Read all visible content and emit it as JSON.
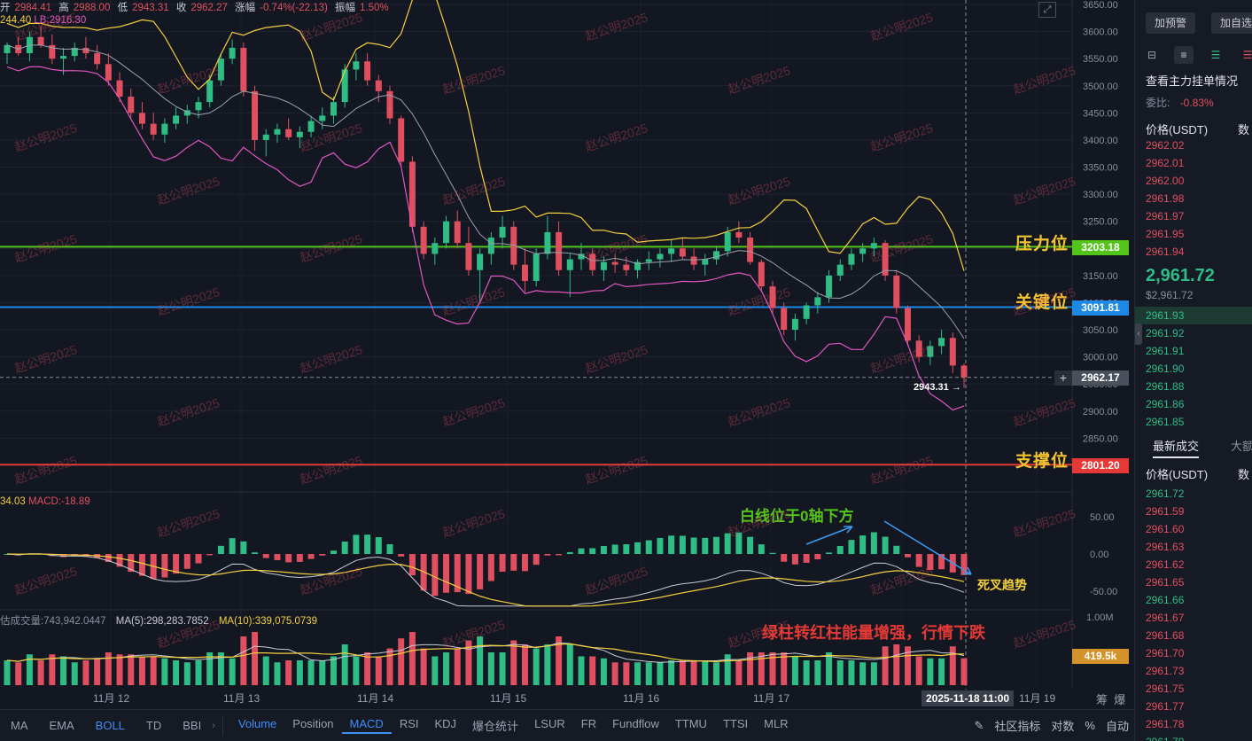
{
  "top_info": {
    "open_label": "开",
    "open": "2984.41",
    "high_label": "高",
    "high": "2988.00",
    "low_label": "低",
    "low": "2943.31",
    "close_label": "收",
    "close": "2962.27",
    "change_label": "涨幅",
    "change": "-0.74%(-22.13)",
    "amplitude_label": "振幅",
    "amplitude": "1.50%"
  },
  "boll_legend": {
    "ub": "244.40",
    "lb": "LB:2916.30"
  },
  "macd_legend": {
    "value": "34.03",
    "macd": "MACD:-18.89"
  },
  "vol_legend": {
    "vol": "估成交量:743,942.0447",
    "ma5": "MA(5):298,283.7852",
    "ma10": "MA(10):339,075.0739"
  },
  "price_axis": [
    "3650.00",
    "3600.00",
    "3550.00",
    "3500.00",
    "3450.00",
    "3400.00",
    "3350.00",
    "3300.00",
    "3250.00",
    "3200.00",
    "3150.00",
    "3100.00",
    "3050.00",
    "3000.00",
    "2950.00",
    "2900.00",
    "2850.00",
    "2800.00"
  ],
  "macd_axis": [
    "50.00",
    "0.00",
    "-50.00"
  ],
  "vol_axis": [
    "1.00M"
  ],
  "time_axis": [
    "11月 12",
    "11月 13",
    "11月 14",
    "11月 15",
    "11月 16",
    "11月 17",
    "11月 18",
    "11月 19"
  ],
  "levels": {
    "resistance": {
      "label": "压力位",
      "price": "3203.18",
      "color": "#52c41a"
    },
    "key": {
      "label": "关键位",
      "price": "3091.81",
      "color": "#1e88e5"
    },
    "support": {
      "label": "支撑位",
      "price": "2801.20",
      "color": "#e53935"
    }
  },
  "current_price": "2962.17",
  "low_marker": "2943.31",
  "crosshair_time": "2025-11-18 11:00",
  "vol_current": "419.5k",
  "annotations": {
    "white_line": "白线位于0轴下方",
    "dead_cross": "死叉趋势",
    "volume_note": "绿柱转红柱能量增强，行情下跌"
  },
  "watermark": "赵公明2025",
  "bottom_tabs_left": [
    "MA",
    "EMA",
    "BOLL",
    "TD",
    "BBI"
  ],
  "bottom_tabs_right": [
    "Volume",
    "Position",
    "MACD",
    "RSI",
    "KDJ",
    "爆仓统计",
    "LSUR",
    "FR",
    "Fundflow",
    "TTMU",
    "TTSI",
    "MLR"
  ],
  "bottom_tools": [
    "社区指标",
    "对数",
    "%",
    "自动"
  ],
  "axis_corner": [
    "筹",
    "爆"
  ],
  "side_panel": {
    "btn_alert": "加预警",
    "btn_watch": "加自选",
    "orderbook_title": "查看主力挂单情况",
    "ratio_label": "委比:",
    "ratio_value": "-0.83%",
    "price_header": "价格(USDT)",
    "qty_header": "数",
    "asks": [
      "2962.02",
      "2962.01",
      "2962.00",
      "2961.98",
      "2961.97",
      "2961.95",
      "2961.94"
    ],
    "last_price": "2,961.72",
    "last_price_sub": "$2,961.72",
    "bids": [
      "2961.93",
      "2961.92",
      "2961.91",
      "2961.90",
      "2961.88",
      "2961.86",
      "2961.85"
    ],
    "trades_tab": "最新成交",
    "trades_tab2": "大额",
    "trades_price_header": "价格(USDT)",
    "trades_qty_header": "数",
    "trades": [
      {
        "p": "2961.72",
        "c": "g"
      },
      {
        "p": "2961.59",
        "c": "r"
      },
      {
        "p": "2961.60",
        "c": "r"
      },
      {
        "p": "2961.63",
        "c": "r"
      },
      {
        "p": "2961.62",
        "c": "r"
      },
      {
        "p": "2961.65",
        "c": "r"
      },
      {
        "p": "2961.66",
        "c": "g"
      },
      {
        "p": "2961.67",
        "c": "r"
      },
      {
        "p": "2961.68",
        "c": "r"
      },
      {
        "p": "2961.70",
        "c": "r"
      },
      {
        "p": "2961.73",
        "c": "r"
      },
      {
        "p": "2961.75",
        "c": "r"
      },
      {
        "p": "2961.77",
        "c": "r"
      },
      {
        "p": "2961.78",
        "c": "r"
      },
      {
        "p": "2961.79",
        "c": "g"
      }
    ]
  },
  "colors": {
    "up": "#2ebd85",
    "down": "#e04f5f",
    "boll_outer": "#f4d03f",
    "boll_mid": "#9aa0ad",
    "boll_lower": "#e056c1"
  },
  "chart_data": {
    "type": "candlestick",
    "price_range": [
      2780,
      3660
    ],
    "candles": [
      [
        3560,
        3580,
        3540,
        3575
      ],
      [
        3575,
        3590,
        3555,
        3560
      ],
      [
        3560,
        3600,
        3545,
        3590
      ],
      [
        3590,
        3610,
        3570,
        3575
      ],
      [
        3575,
        3595,
        3540,
        3550
      ],
      [
        3550,
        3570,
        3520,
        3555
      ],
      [
        3555,
        3580,
        3545,
        3570
      ],
      [
        3570,
        3590,
        3550,
        3560
      ],
      [
        3560,
        3575,
        3530,
        3540
      ],
      [
        3540,
        3560,
        3500,
        3510
      ],
      [
        3510,
        3525,
        3470,
        3480
      ],
      [
        3480,
        3495,
        3440,
        3450
      ],
      [
        3450,
        3470,
        3420,
        3430
      ],
      [
        3430,
        3450,
        3400,
        3410
      ],
      [
        3410,
        3440,
        3395,
        3430
      ],
      [
        3430,
        3460,
        3420,
        3445
      ],
      [
        3445,
        3465,
        3430,
        3455
      ],
      [
        3455,
        3480,
        3440,
        3470
      ],
      [
        3470,
        3520,
        3460,
        3510
      ],
      [
        3510,
        3560,
        3500,
        3550
      ],
      [
        3550,
        3585,
        3540,
        3570
      ],
      [
        3570,
        3580,
        3480,
        3490
      ],
      [
        3490,
        3500,
        3380,
        3400
      ],
      [
        3400,
        3420,
        3370,
        3410
      ],
      [
        3410,
        3430,
        3395,
        3420
      ],
      [
        3420,
        3440,
        3400,
        3405
      ],
      [
        3405,
        3425,
        3385,
        3415
      ],
      [
        3415,
        3445,
        3405,
        3435
      ],
      [
        3435,
        3460,
        3420,
        3445
      ],
      [
        3445,
        3480,
        3430,
        3470
      ],
      [
        3470,
        3540,
        3460,
        3530
      ],
      [
        3530,
        3560,
        3510,
        3545
      ],
      [
        3545,
        3560,
        3500,
        3510
      ],
      [
        3510,
        3520,
        3470,
        3490
      ],
      [
        3490,
        3500,
        3430,
        3440
      ],
      [
        3440,
        3445,
        3350,
        3360
      ],
      [
        3360,
        3370,
        3230,
        3240
      ],
      [
        3240,
        3250,
        3180,
        3190
      ],
      [
        3190,
        3220,
        3170,
        3210
      ],
      [
        3210,
        3260,
        3200,
        3250
      ],
      [
        3250,
        3270,
        3200,
        3210
      ],
      [
        3210,
        3240,
        3150,
        3160
      ],
      [
        3160,
        3200,
        3100,
        3190
      ],
      [
        3190,
        3230,
        3170,
        3220
      ],
      [
        3220,
        3260,
        3200,
        3240
      ],
      [
        3240,
        3250,
        3160,
        3170
      ],
      [
        3170,
        3200,
        3120,
        3140
      ],
      [
        3140,
        3200,
        3130,
        3190
      ],
      [
        3190,
        3260,
        3180,
        3230
      ],
      [
        3230,
        3250,
        3150,
        3160
      ],
      [
        3160,
        3190,
        3110,
        3180
      ],
      [
        3180,
        3210,
        3160,
        3190
      ],
      [
        3190,
        3200,
        3150,
        3160
      ],
      [
        3160,
        3185,
        3140,
        3175
      ],
      [
        3175,
        3190,
        3155,
        3170
      ],
      [
        3170,
        3185,
        3150,
        3160
      ],
      [
        3160,
        3180,
        3145,
        3175
      ],
      [
        3175,
        3195,
        3160,
        3180
      ],
      [
        3180,
        3200,
        3165,
        3190
      ],
      [
        3190,
        3215,
        3175,
        3200
      ],
      [
        3200,
        3220,
        3180,
        3185
      ],
      [
        3185,
        3200,
        3160,
        3170
      ],
      [
        3170,
        3190,
        3150,
        3180
      ],
      [
        3180,
        3205,
        3170,
        3195
      ],
      [
        3195,
        3240,
        3185,
        3230
      ],
      [
        3230,
        3250,
        3210,
        3220
      ],
      [
        3220,
        3230,
        3170,
        3175
      ],
      [
        3175,
        3180,
        3120,
        3130
      ],
      [
        3130,
        3140,
        3080,
        3090
      ],
      [
        3090,
        3100,
        3040,
        3050
      ],
      [
        3050,
        3080,
        3030,
        3070
      ],
      [
        3070,
        3100,
        3060,
        3095
      ],
      [
        3095,
        3120,
        3080,
        3110
      ],
      [
        3110,
        3160,
        3100,
        3150
      ],
      [
        3150,
        3180,
        3140,
        3170
      ],
      [
        3170,
        3200,
        3160,
        3190
      ],
      [
        3190,
        3210,
        3175,
        3200
      ],
      [
        3200,
        3220,
        3185,
        3210
      ],
      [
        3210,
        3215,
        3140,
        3150
      ],
      [
        3150,
        3160,
        3080,
        3090
      ],
      [
        3090,
        3095,
        3020,
        3030
      ],
      [
        3030,
        3040,
        2990,
        3000
      ],
      [
        3000,
        3030,
        2985,
        3020
      ],
      [
        3020,
        3050,
        3005,
        3035
      ],
      [
        3035,
        3045,
        2970,
        2984
      ],
      [
        2984,
        2988,
        2943,
        2962
      ]
    ]
  }
}
